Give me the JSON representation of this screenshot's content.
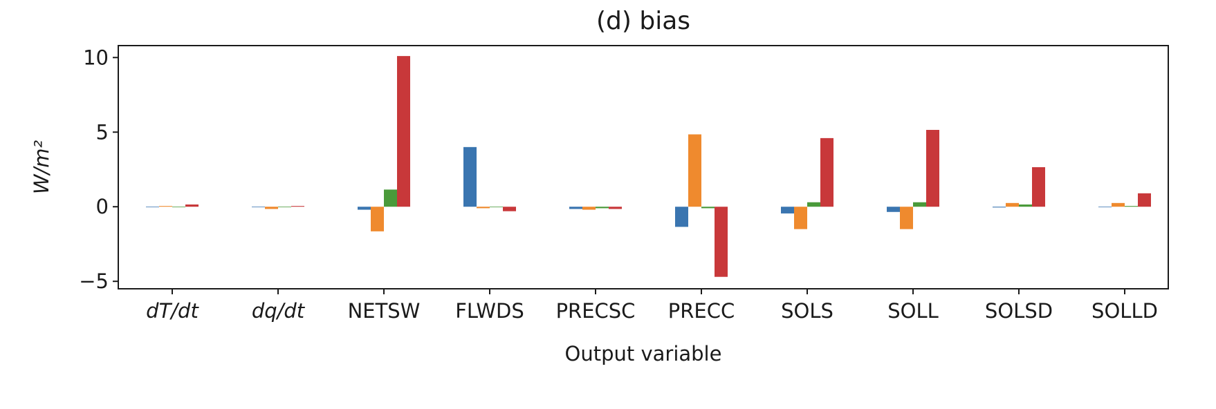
{
  "chart_data": {
    "type": "bar",
    "title": "(d) bias",
    "xlabel": "Output variable",
    "ylabel": "W/m²",
    "ylim": [
      -5.5,
      10.8
    ],
    "yticks": [
      -5,
      0,
      5,
      10
    ],
    "ytick_labels": [
      "−5",
      "0",
      "5",
      "10"
    ],
    "grid": false,
    "categories": [
      "dT/dt",
      "dq/dt",
      "NETSW",
      "FLWDS",
      "PRECSC",
      "PRECC",
      "SOLS",
      "SOLL",
      "SOLSD",
      "SOLLD"
    ],
    "series": [
      {
        "color": "#3a75b0",
        "values": [
          0.0,
          0.0,
          -0.2,
          4.0,
          -0.15,
          -1.35,
          -0.45,
          -0.35,
          -0.05,
          0.0
        ]
      },
      {
        "color": "#ef8a2e",
        "values": [
          0.05,
          -0.15,
          -1.65,
          -0.1,
          -0.2,
          4.85,
          -1.5,
          -1.5,
          0.25,
          0.25
        ]
      },
      {
        "color": "#4a9a3a",
        "values": [
          0.0,
          0.0,
          1.15,
          0.0,
          -0.1,
          -0.1,
          0.3,
          0.3,
          0.15,
          0.05
        ]
      },
      {
        "color": "#c8383a",
        "values": [
          0.15,
          0.05,
          10.1,
          -0.3,
          -0.15,
          -4.7,
          4.6,
          5.15,
          2.65,
          0.9
        ]
      }
    ]
  }
}
